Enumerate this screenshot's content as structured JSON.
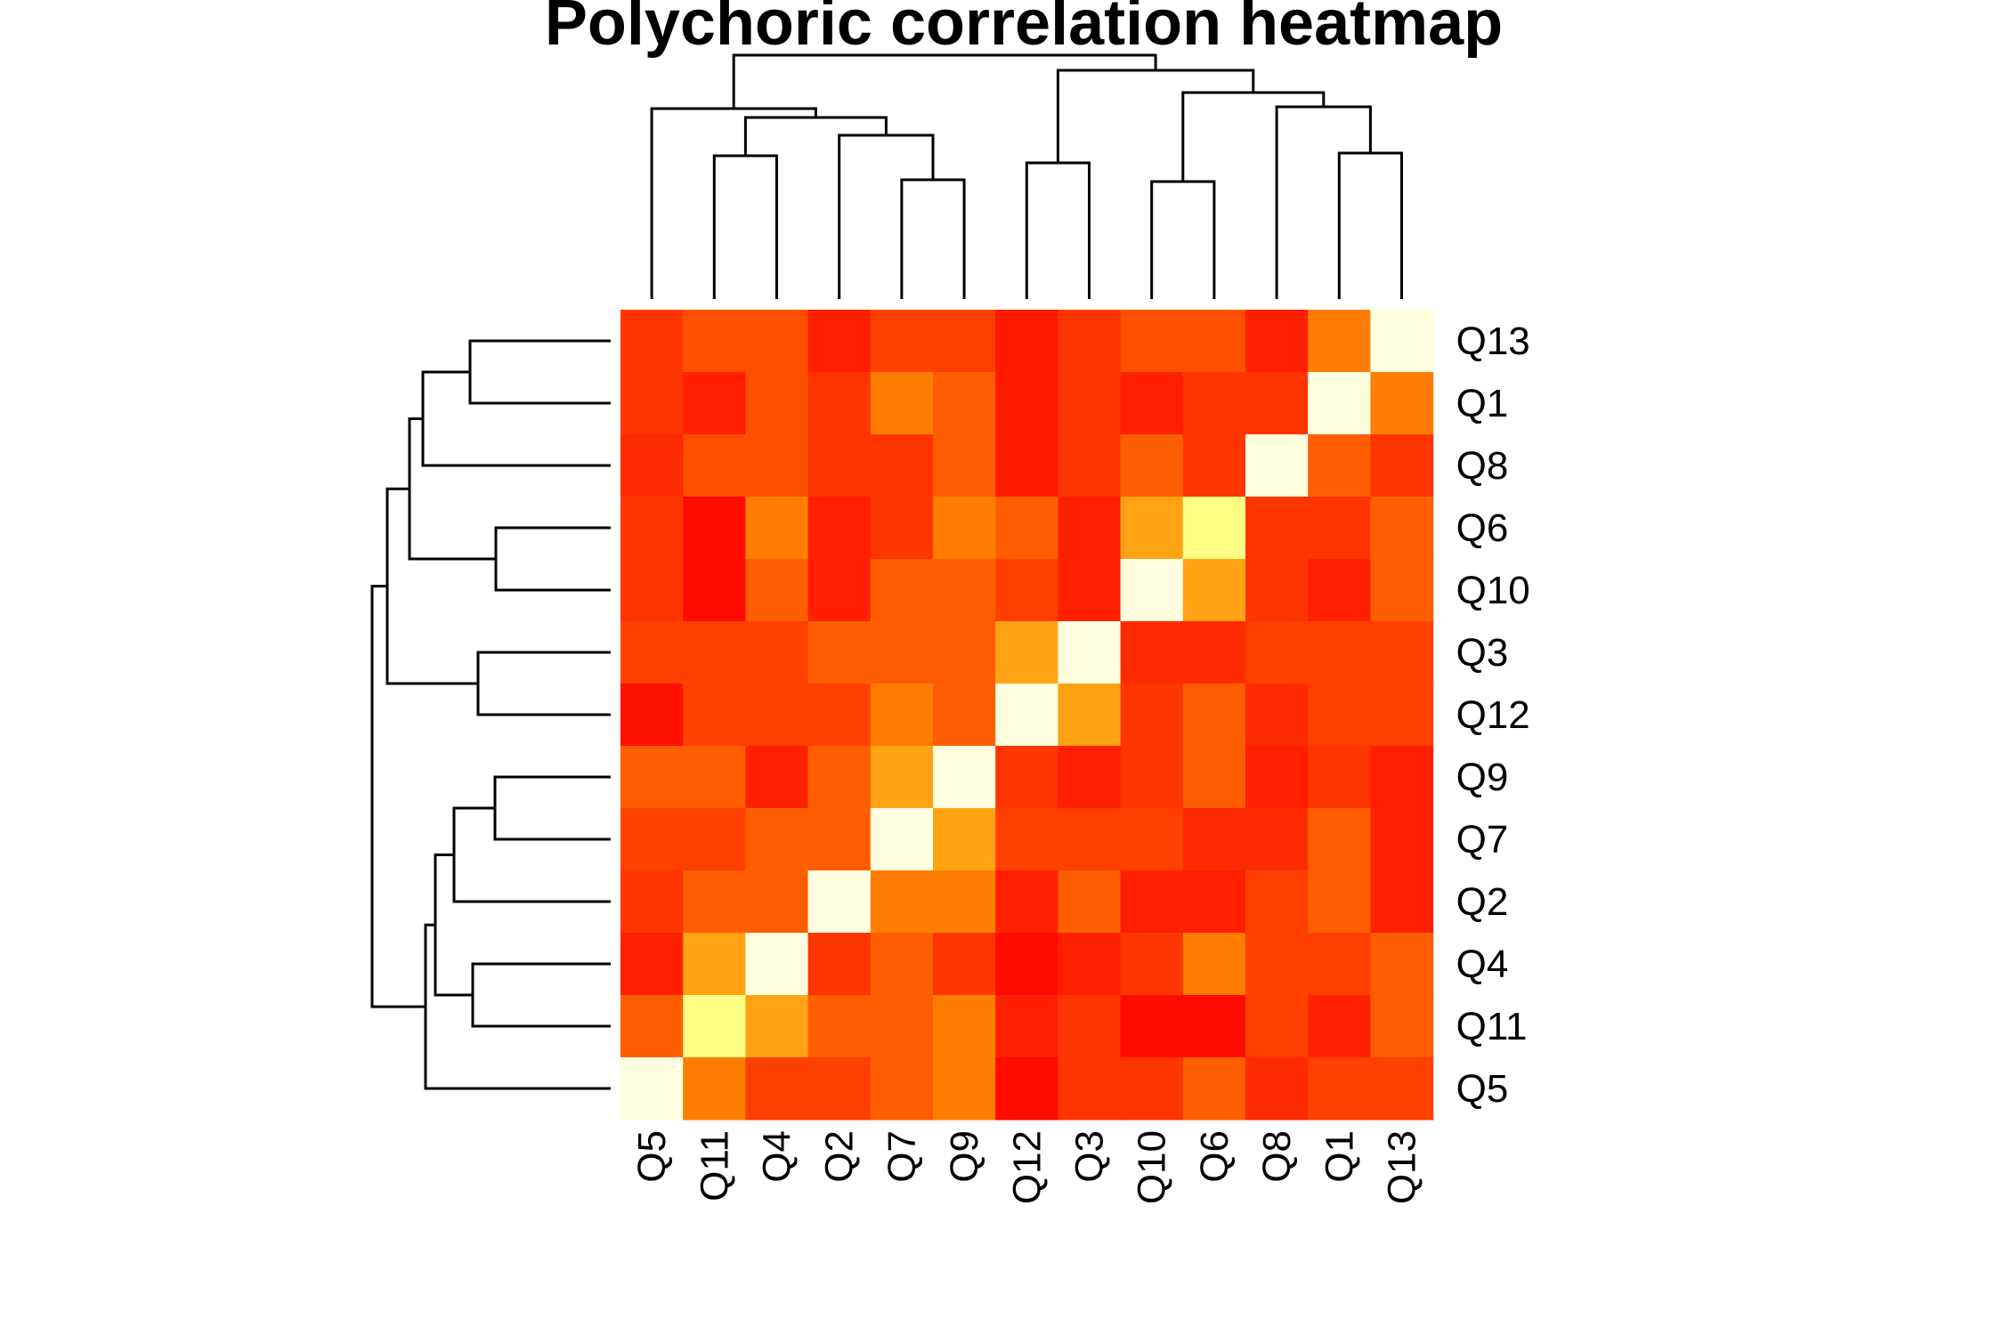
{
  "chart_data": {
    "type": "heatmap",
    "title": "Polychoric correlation heatmap",
    "xlabel": "",
    "ylabel": "",
    "column_order": [
      "Q5",
      "Q11",
      "Q4",
      "Q2",
      "Q7",
      "Q9",
      "Q12",
      "Q3",
      "Q10",
      "Q6",
      "Q8",
      "Q1",
      "Q13"
    ],
    "row_order_top_to_bottom": [
      "Q13",
      "Q1",
      "Q8",
      "Q6",
      "Q10",
      "Q3",
      "Q12",
      "Q9",
      "Q7",
      "Q2",
      "Q4",
      "Q11",
      "Q5"
    ],
    "color_scale": "heat.colors (red = low, white = high)",
    "value_range": [
      0,
      1
    ],
    "values": [
      [
        0.25,
        0.35,
        0.35,
        0.15,
        0.3,
        0.3,
        0.12,
        0.25,
        0.35,
        0.35,
        0.15,
        0.5,
        1.0
      ],
      [
        0.25,
        0.15,
        0.35,
        0.25,
        0.5,
        0.4,
        0.12,
        0.25,
        0.15,
        0.25,
        0.25,
        1.0,
        0.5
      ],
      [
        0.2,
        0.35,
        0.35,
        0.25,
        0.25,
        0.4,
        0.12,
        0.25,
        0.4,
        0.25,
        1.0,
        0.4,
        0.25
      ],
      [
        0.25,
        0.05,
        0.5,
        0.15,
        0.25,
        0.5,
        0.4,
        0.15,
        0.6,
        0.85,
        0.25,
        0.25,
        0.4
      ],
      [
        0.25,
        0.05,
        0.4,
        0.15,
        0.4,
        0.4,
        0.3,
        0.15,
        1.0,
        0.6,
        0.25,
        0.15,
        0.4
      ],
      [
        0.3,
        0.3,
        0.3,
        0.4,
        0.4,
        0.4,
        0.6,
        1.0,
        0.2,
        0.2,
        0.3,
        0.3,
        0.3
      ],
      [
        0.08,
        0.3,
        0.3,
        0.3,
        0.5,
        0.4,
        1.0,
        0.6,
        0.25,
        0.4,
        0.2,
        0.3,
        0.3
      ],
      [
        0.4,
        0.4,
        0.15,
        0.4,
        0.6,
        1.0,
        0.25,
        0.15,
        0.25,
        0.4,
        0.15,
        0.25,
        0.15
      ],
      [
        0.3,
        0.3,
        0.4,
        0.4,
        1.0,
        0.6,
        0.3,
        0.3,
        0.3,
        0.2,
        0.2,
        0.4,
        0.15
      ],
      [
        0.25,
        0.4,
        0.4,
        1.0,
        0.5,
        0.5,
        0.15,
        0.4,
        0.15,
        0.15,
        0.3,
        0.4,
        0.15
      ],
      [
        0.15,
        0.6,
        1.0,
        0.25,
        0.4,
        0.25,
        0.05,
        0.15,
        0.25,
        0.5,
        0.3,
        0.3,
        0.4
      ],
      [
        0.4,
        0.85,
        0.6,
        0.4,
        0.4,
        0.5,
        0.15,
        0.25,
        0.05,
        0.05,
        0.3,
        0.15,
        0.4
      ],
      [
        1.0,
        0.5,
        0.3,
        0.3,
        0.4,
        0.5,
        0.05,
        0.25,
        0.25,
        0.4,
        0.2,
        0.3,
        0.3
      ]
    ],
    "legend": "none",
    "grid": false,
    "column_dendrogram": "shown",
    "row_dendrogram": "shown"
  }
}
